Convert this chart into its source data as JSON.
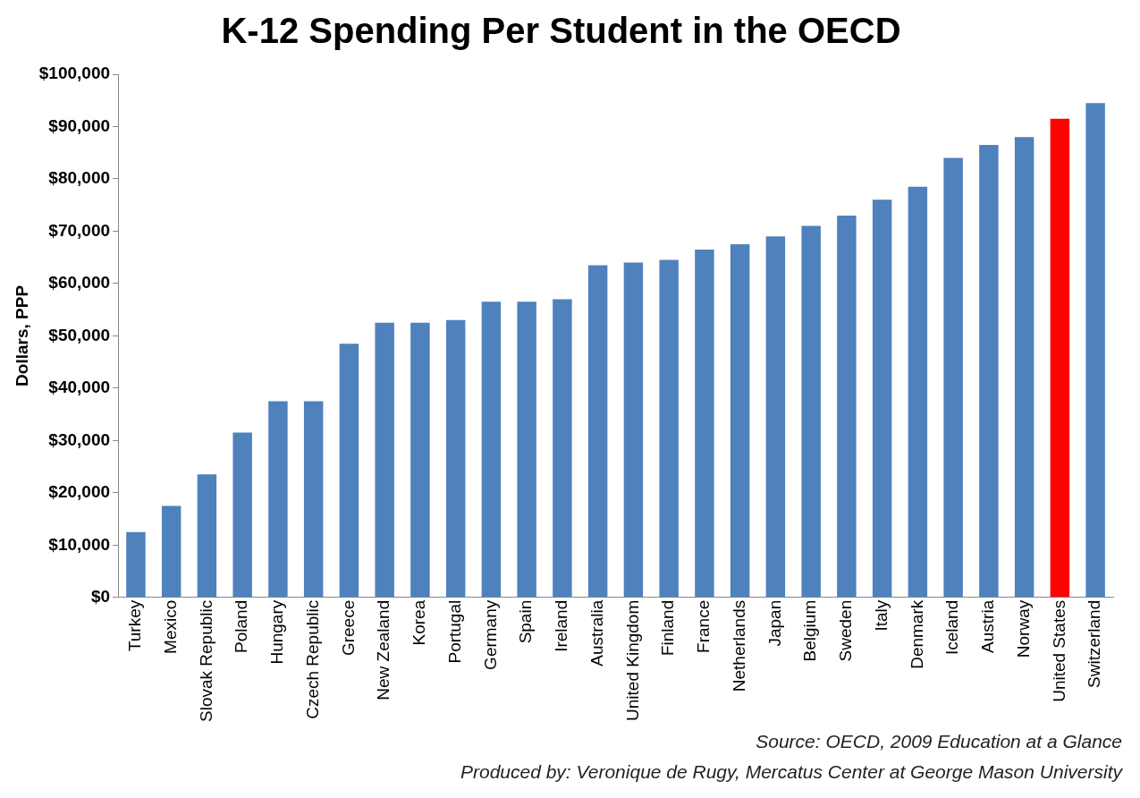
{
  "chart_data": {
    "type": "bar",
    "title": "K-12 Spending Per Student in the OECD",
    "ylabel": "Dollars, PPP",
    "categories": [
      "Turkey",
      "Mexico",
      "Slovak Republic",
      "Poland",
      "Hungary",
      "Czech Republic",
      "Greece",
      "New Zealand",
      "Korea",
      "Portugal",
      "Germany",
      "Spain",
      "Ireland",
      "Australia",
      "United Kingdom",
      "Finland",
      "France",
      "Netherlands",
      "Japan",
      "Belgium",
      "Sweden",
      "Italy",
      "Denmark",
      "Iceland",
      "Austria",
      "Norway",
      "United States",
      "Switzerland"
    ],
    "values": [
      12500,
      17500,
      23500,
      31500,
      37500,
      37500,
      48500,
      52500,
      52500,
      53000,
      56500,
      56500,
      57000,
      63500,
      64000,
      64500,
      66500,
      67500,
      69000,
      71000,
      73000,
      76000,
      78500,
      84000,
      86500,
      88000,
      91500,
      94500
    ],
    "colors": [
      "#4f81bd",
      "#4f81bd",
      "#4f81bd",
      "#4f81bd",
      "#4f81bd",
      "#4f81bd",
      "#4f81bd",
      "#4f81bd",
      "#4f81bd",
      "#4f81bd",
      "#4f81bd",
      "#4f81bd",
      "#4f81bd",
      "#4f81bd",
      "#4f81bd",
      "#4f81bd",
      "#4f81bd",
      "#4f81bd",
      "#4f81bd",
      "#4f81bd",
      "#4f81bd",
      "#4f81bd",
      "#4f81bd",
      "#4f81bd",
      "#4f81bd",
      "#4f81bd",
      "#ff0000",
      "#4f81bd"
    ],
    "ylim": [
      0,
      100000
    ],
    "yticks": [
      {
        "value": 0,
        "label": "$0"
      },
      {
        "value": 10000,
        "label": "$10,000"
      },
      {
        "value": 20000,
        "label": "$20,000"
      },
      {
        "value": 30000,
        "label": "$30,000"
      },
      {
        "value": 40000,
        "label": "$40,000"
      },
      {
        "value": 50000,
        "label": "$50,000"
      },
      {
        "value": 60000,
        "label": "$60,000"
      },
      {
        "value": 70000,
        "label": "$70,000"
      },
      {
        "value": 80000,
        "label": "$80,000"
      },
      {
        "value": 90000,
        "label": "$90,000"
      },
      {
        "value": 100000,
        "label": "$100,000"
      }
    ],
    "grid": false,
    "legend": false,
    "annotations": [
      "Source: OECD, 2009  Education at a Glance",
      "Produced by: Veronique de Rugy, Mercatus Center at George Mason University"
    ]
  }
}
